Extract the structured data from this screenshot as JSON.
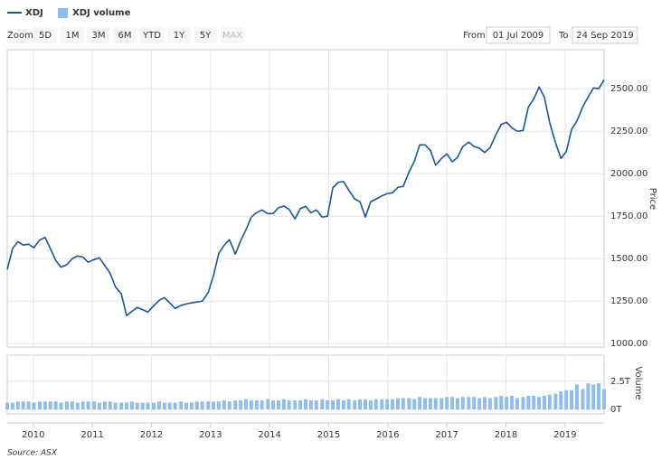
{
  "chart_data": {
    "type": "line",
    "x": [
      2009.56,
      2009.65,
      2009.74,
      2009.83,
      2009.92,
      2010.01,
      2010.11,
      2010.2,
      2010.29,
      2010.38,
      2010.47,
      2010.57,
      2010.66,
      2010.75,
      2010.84,
      2010.93,
      2011.03,
      2011.12,
      2011.21,
      2011.3,
      2011.39,
      2011.49,
      2011.58,
      2011.67,
      2011.76,
      2011.85,
      2011.94,
      2012.04,
      2012.13,
      2012.22,
      2012.31,
      2012.4,
      2012.5,
      2012.59,
      2012.68,
      2012.77,
      2012.86,
      2012.96,
      2013.05,
      2013.14,
      2013.23,
      2013.32,
      2013.42,
      2013.51,
      2013.6,
      2013.69,
      2013.78,
      2013.87,
      2013.97,
      2014.06,
      2014.15,
      2014.24,
      2014.33,
      2014.43,
      2014.52,
      2014.61,
      2014.7,
      2014.79,
      2014.89,
      2014.98,
      2015.07,
      2015.16,
      2015.25,
      2015.34,
      2015.44,
      2015.53,
      2015.62,
      2015.71,
      2015.8,
      2015.9,
      2015.99,
      2016.08,
      2016.17,
      2016.26,
      2016.36,
      2016.45,
      2016.54,
      2016.63,
      2016.72,
      2016.81,
      2016.91,
      2017.0,
      2017.09,
      2017.18,
      2017.27,
      2017.37,
      2017.46,
      2017.55,
      2017.64,
      2017.73,
      2017.83,
      2017.92,
      2018.01,
      2018.1,
      2018.19,
      2018.29,
      2018.38,
      2018.47,
      2018.56,
      2018.65,
      2018.74,
      2018.84,
      2018.93,
      2019.02,
      2019.11,
      2019.2,
      2019.3,
      2019.39,
      2019.48,
      2019.57,
      2019.66
    ],
    "series": [
      {
        "name": "XDJ",
        "type": "line",
        "color": "#1c5698",
        "values": [
          1436,
          1560,
          1600,
          1580,
          1585,
          1565,
          1610,
          1625,
          1560,
          1490,
          1450,
          1465,
          1500,
          1516,
          1510,
          1479,
          1495,
          1505,
          1460,
          1415,
          1335,
          1293,
          1165,
          1190,
          1213,
          1200,
          1186,
          1223,
          1255,
          1271,
          1240,
          1207,
          1225,
          1234,
          1240,
          1245,
          1250,
          1300,
          1400,
          1532,
          1578,
          1612,
          1527,
          1606,
          1670,
          1745,
          1771,
          1787,
          1765,
          1766,
          1800,
          1810,
          1790,
          1734,
          1795,
          1808,
          1770,
          1787,
          1745,
          1750,
          1918,
          1950,
          1954,
          1904,
          1851,
          1835,
          1745,
          1835,
          1851,
          1870,
          1883,
          1888,
          1920,
          1926,
          2010,
          2074,
          2170,
          2170,
          2138,
          2050,
          2090,
          2117,
          2070,
          2096,
          2160,
          2186,
          2160,
          2150,
          2125,
          2154,
          2230,
          2290,
          2303,
          2270,
          2250,
          2255,
          2394,
          2440,
          2511,
          2450,
          2300,
          2181,
          2090,
          2130,
          2260,
          2310,
          2394,
          2452,
          2505,
          2500,
          2553
        ]
      },
      {
        "name": "XDJ volume",
        "type": "bar",
        "axis": "y2",
        "color": "#90bde9",
        "values": [
          0.6,
          0.6,
          0.7,
          0.7,
          0.7,
          0.6,
          0.7,
          0.7,
          0.7,
          0.7,
          0.6,
          0.7,
          0.7,
          0.6,
          0.7,
          0.7,
          0.7,
          0.6,
          0.7,
          0.7,
          0.6,
          0.6,
          0.6,
          0.7,
          0.6,
          0.6,
          0.6,
          0.6,
          0.7,
          0.6,
          0.6,
          0.6,
          0.7,
          0.6,
          0.6,
          0.7,
          0.7,
          0.7,
          0.7,
          0.7,
          0.8,
          0.7,
          0.8,
          0.8,
          0.9,
          0.8,
          0.8,
          0.8,
          0.9,
          0.8,
          0.8,
          0.9,
          0.8,
          0.8,
          0.8,
          0.9,
          0.8,
          0.8,
          0.9,
          0.8,
          0.8,
          0.9,
          0.8,
          0.9,
          0.8,
          0.9,
          0.9,
          0.8,
          0.9,
          0.9,
          0.9,
          0.9,
          1.0,
          1.0,
          1.0,
          0.9,
          1.1,
          1.0,
          1.0,
          1.0,
          1.0,
          1.1,
          1.1,
          1.0,
          1.1,
          1.1,
          1.1,
          1.0,
          1.1,
          1.0,
          1.1,
          1.2,
          1.1,
          1.2,
          1.0,
          1.1,
          1.2,
          1.2,
          1.1,
          1.2,
          1.3,
          1.4,
          1.6,
          1.7,
          1.7,
          2.2,
          1.8,
          2.3,
          2.2,
          2.3,
          1.8
        ]
      }
    ],
    "xlim": [
      2009.56,
      2019.66
    ],
    "xticks": [
      2010,
      2011,
      2012,
      2013,
      2014,
      2015,
      2016,
      2017,
      2018,
      2019
    ],
    "ylim": [
      980,
      2730
    ],
    "yticks": [
      {
        "value": 1000,
        "label": "1000.00"
      },
      {
        "value": 1250,
        "label": "1250.00"
      },
      {
        "value": 1500,
        "label": "1500.00"
      },
      {
        "value": 1750,
        "label": "1750.00"
      },
      {
        "value": 2000,
        "label": "2000.00"
      },
      {
        "value": 2250,
        "label": "2250.00"
      },
      {
        "value": 2500,
        "label": "2500.00"
      }
    ],
    "ylabel": "Price",
    "y2lim": [
      -0.4,
      4.8
    ],
    "y2ticks": [
      {
        "value": 0,
        "label": "0T"
      },
      {
        "value": 2.5,
        "label": "2.5T"
      }
    ],
    "y2label": "Volume",
    "grid": true,
    "source": "Source: ASX"
  },
  "controls": {
    "zoom_label": "Zoom",
    "range_buttons": [
      "5D",
      "1M",
      "3M",
      "6M",
      "YTD",
      "1Y",
      "5Y",
      "MAX"
    ],
    "from_label": "From",
    "from_date": "01 Jul 2009",
    "to_label": "To",
    "to_date": "24 Sep 2019"
  }
}
